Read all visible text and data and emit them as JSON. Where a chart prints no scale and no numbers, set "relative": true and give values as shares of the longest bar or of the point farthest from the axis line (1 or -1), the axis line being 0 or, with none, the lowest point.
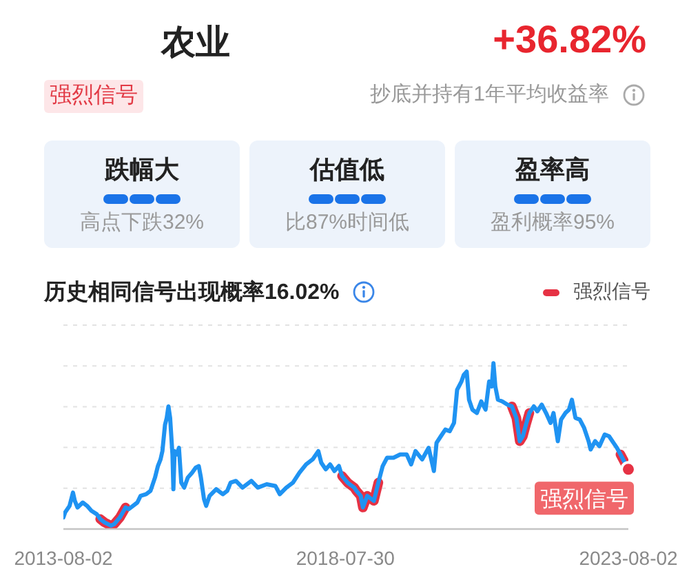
{
  "chart_data": [
    {
      "type": "other",
      "title": "农业",
      "subtitle": "抄底并持有1年平均收益率",
      "annotations": [
        "+36.82%",
        "强烈信号",
        "跌幅大",
        "高点下跌32%",
        "估值低",
        "比87%时间低",
        "盈率高",
        "盈利概率95%"
      ]
    },
    {
      "type": "line",
      "title": "历史相同信号出现概率16.02%",
      "relative": true,
      "grid": "y",
      "legend": "top right",
      "xlim": [
        "2013-08-02",
        "2023-08-02"
      ],
      "xticks": [
        "2013-08-02",
        "2018-07-30",
        "2023-08-02"
      ],
      "x": [
        "2013-08-02",
        "2013-08-13",
        "2013-09-11",
        "2013-10-03",
        "2013-10-15",
        "2013-11-01",
        "2013-12-05",
        "2014-01-02",
        "2014-01-30",
        "2014-03-05",
        "2014-03-28",
        "2014-04-25",
        "2014-06-06",
        "2014-06-27",
        "2014-08-02",
        "2014-09-08",
        "2014-09-28",
        "2014-10-26",
        "2014-11-23",
        "2014-12-14",
        "2015-01-19",
        "2015-02-16",
        "2015-03-17",
        "2015-04-05",
        "2015-04-22",
        "2015-05-04",
        "2015-05-21",
        "2015-06-01",
        "2015-06-12",
        "2015-06-23",
        "2015-07-08",
        "2015-07-14",
        "2015-07-22",
        "2015-08-05",
        "2015-08-19",
        "2015-09-03",
        "2015-09-22",
        "2015-10-15",
        "2015-11-12",
        "2015-12-05",
        "2015-12-25",
        "2016-01-08",
        "2016-01-28",
        "2016-02-11",
        "2016-03-04",
        "2016-04-16",
        "2016-05-28",
        "2016-06-26",
        "2016-07-18",
        "2016-08-21",
        "2016-10-03",
        "2016-11-29",
        "2017-01-10",
        "2017-03-08",
        "2017-05-03",
        "2017-06-01",
        "2017-07-13",
        "2017-08-25",
        "2017-10-06",
        "2017-11-18",
        "2017-12-30",
        "2018-02-05",
        "2018-02-24",
        "2018-03-25",
        "2018-04-22",
        "2018-05-20",
        "2018-06-18",
        "2018-07-08",
        "2018-08-13",
        "2018-08-27",
        "2018-09-25",
        "2018-10-09",
        "2018-11-06",
        "2018-11-20",
        "2018-12-18",
        "2019-01-30",
        "2019-02-28",
        "2019-03-28",
        "2019-04-25",
        "2019-06-06",
        "2019-07-19",
        "2019-08-30",
        "2019-09-28",
        "2019-10-26",
        "2019-12-08",
        "2020-01-19",
        "2020-02-22",
        "2020-03-10",
        "2020-04-07",
        "2020-05-06",
        "2020-06-03",
        "2020-07-01",
        "2020-07-21",
        "2020-08-18",
        "2020-09-02",
        "2020-09-21",
        "2020-10-06",
        "2020-10-28",
        "2020-11-26",
        "2020-12-24",
        "2021-01-21",
        "2021-02-13",
        "2021-03-02",
        "2021-03-13",
        "2021-03-25",
        "2021-04-11",
        "2021-05-09",
        "2021-06-12",
        "2021-07-10",
        "2021-08-08",
        "2021-08-30",
        "2021-09-19",
        "2021-10-09",
        "2021-10-31",
        "2021-11-29",
        "2021-12-22",
        "2022-01-19",
        "2022-02-16",
        "2022-03-17",
        "2022-04-05",
        "2022-05-03",
        "2022-05-24",
        "2022-06-21",
        "2022-07-14",
        "2022-08-02",
        "2022-08-25",
        "2022-09-22",
        "2022-10-20",
        "2022-11-18",
        "2022-12-01",
        "2022-12-30",
        "2023-01-27",
        "2023-03-02",
        "2023-03-30",
        "2023-04-28",
        "2023-05-20",
        "2023-06-12",
        "2023-08-02"
      ],
      "series": [
        {
          "color": "#1f93f2",
          "values": [
            0.07,
            0.1,
            0.14,
            0.22,
            0.17,
            0.13,
            0.16,
            0.14,
            0.11,
            0.09,
            0.06,
            0.04,
            0.02,
            0.03,
            0.07,
            0.13,
            0.12,
            0.14,
            0.16,
            0.2,
            0.21,
            0.23,
            0.31,
            0.38,
            0.42,
            0.47,
            0.63,
            0.67,
            0.74,
            0.67,
            0.45,
            0.24,
            0.47,
            0.45,
            0.49,
            0.28,
            0.25,
            0.31,
            0.34,
            0.37,
            0.38,
            0.31,
            0.18,
            0.14,
            0.2,
            0.24,
            0.21,
            0.23,
            0.28,
            0.29,
            0.25,
            0.29,
            0.25,
            0.27,
            0.26,
            0.21,
            0.25,
            0.28,
            0.34,
            0.39,
            0.42,
            0.47,
            0.4,
            0.36,
            0.39,
            0.35,
            0.38,
            0.32,
            0.28,
            0.27,
            0.25,
            0.23,
            0.2,
            0.13,
            0.2,
            0.17,
            0.28,
            0.38,
            0.43,
            0.43,
            0.45,
            0.45,
            0.39,
            0.47,
            0.42,
            0.49,
            0.35,
            0.52,
            0.56,
            0.6,
            0.59,
            0.64,
            0.84,
            0.89,
            0.93,
            0.95,
            0.78,
            0.72,
            0.7,
            0.77,
            0.72,
            0.89,
            0.86,
            1.0,
            0.86,
            0.78,
            0.77,
            0.75,
            0.74,
            0.67,
            0.53,
            0.56,
            0.63,
            0.7,
            0.74,
            0.71,
            0.75,
            0.7,
            0.64,
            0.7,
            0.53,
            0.66,
            0.7,
            0.72,
            0.78,
            0.67,
            0.66,
            0.61,
            0.53,
            0.48,
            0.53,
            0.5,
            0.57,
            0.56,
            0.52,
            0.49,
            0.45,
            0.36
          ]
        },
        {
          "name": "强烈信号",
          "color": "#e63244",
          "values": [
            null,
            null,
            null,
            null,
            null,
            null,
            null,
            null,
            null,
            null,
            0.06,
            0.04,
            0.02,
            0.03,
            0.07,
            0.13,
            null,
            null,
            null,
            null,
            null,
            null,
            null,
            null,
            null,
            null,
            null,
            null,
            null,
            null,
            null,
            null,
            null,
            null,
            null,
            null,
            null,
            null,
            null,
            null,
            null,
            null,
            null,
            null,
            null,
            null,
            null,
            null,
            null,
            null,
            null,
            null,
            null,
            null,
            null,
            null,
            null,
            null,
            null,
            null,
            null,
            null,
            null,
            null,
            null,
            null,
            null,
            0.32,
            0.28,
            0.27,
            0.25,
            0.23,
            0.2,
            0.13,
            0.2,
            0.17,
            0.28,
            null,
            null,
            null,
            null,
            null,
            null,
            null,
            null,
            null,
            null,
            null,
            null,
            null,
            null,
            null,
            null,
            null,
            null,
            null,
            null,
            null,
            null,
            null,
            null,
            null,
            null,
            null,
            null,
            null,
            null,
            null,
            0.74,
            0.67,
            0.53,
            0.56,
            0.63,
            0.7,
            null,
            null,
            null,
            null,
            null,
            null,
            null,
            null,
            null,
            null,
            null,
            null,
            null,
            null,
            null,
            null,
            null,
            null,
            null,
            null,
            null,
            null,
            0.45,
            0.36
          ]
        }
      ],
      "annotations": [
        {
          "text": "强烈信号",
          "x": "2023-08-02",
          "y": 0.36
        }
      ]
    }
  ]
}
